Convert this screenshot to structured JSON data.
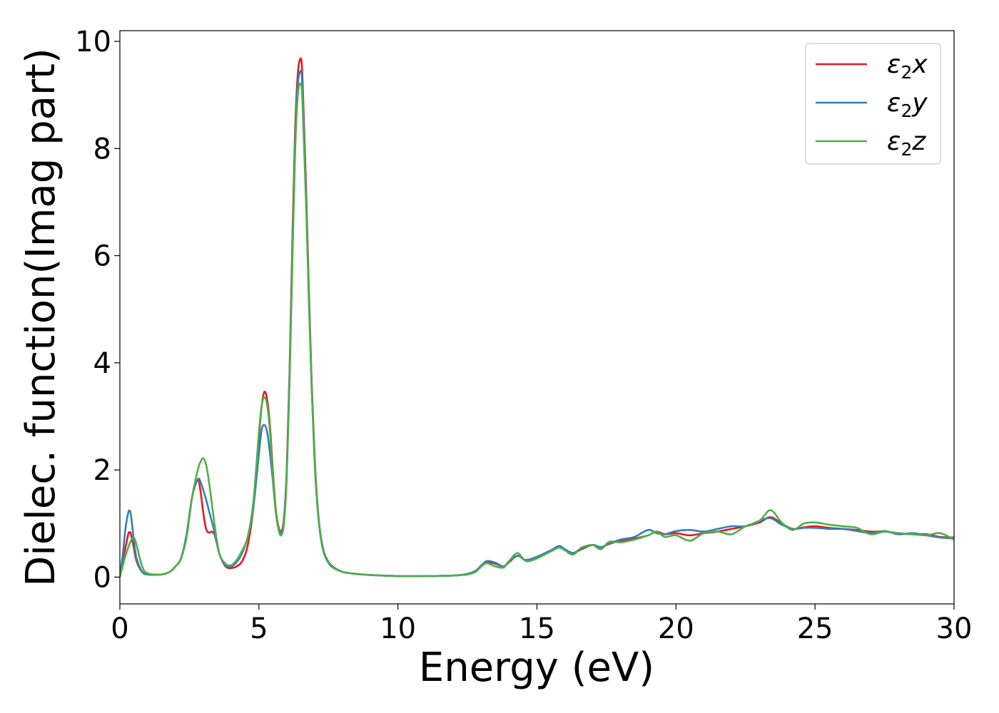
{
  "chart_data": {
    "type": "line",
    "title": "",
    "xlabel": "Energy (eV)",
    "ylabel": "Dielec. function(Imag part)",
    "xlim": [
      0,
      30
    ],
    "ylim": [
      -0.5,
      10.2
    ],
    "xticks": [
      0,
      5,
      10,
      15,
      20,
      25,
      30
    ],
    "yticks": [
      0,
      2,
      4,
      6,
      8,
      10
    ],
    "grid": false,
    "legend_position": "top-right",
    "series": [
      {
        "name": "ε₂x",
        "legend_base": "ε",
        "legend_sub": "2",
        "legend_var": "x",
        "color": "#e41a1c",
        "x": [
          0,
          0.1,
          0.2,
          0.3,
          0.35,
          0.4,
          0.5,
          0.6,
          0.8,
          1.0,
          1.5,
          1.8,
          2.0,
          2.2,
          2.4,
          2.6,
          2.8,
          2.9,
          3.0,
          3.1,
          3.2,
          3.3,
          3.4,
          3.5,
          3.6,
          3.8,
          4.0,
          4.2,
          4.4,
          4.6,
          4.8,
          5.0,
          5.1,
          5.2,
          5.3,
          5.4,
          5.5,
          5.6,
          5.7,
          5.8,
          5.9,
          6.0,
          6.1,
          6.2,
          6.3,
          6.4,
          6.5,
          6.55,
          6.6,
          6.7,
          6.8,
          6.9,
          7.0,
          7.1,
          7.2,
          7.3,
          7.4,
          7.6,
          8.0,
          8.5,
          9.0,
          10.0,
          11.0,
          12.0,
          12.5,
          12.8,
          13.0,
          13.2,
          13.5,
          13.8,
          14.0,
          14.3,
          14.6,
          15.0,
          15.5,
          15.8,
          16.0,
          16.3,
          16.6,
          17.0,
          17.3,
          17.6,
          18.0,
          18.5,
          19.0,
          19.3,
          19.6,
          20.0,
          20.5,
          21.0,
          21.5,
          22.0,
          22.5,
          23.0,
          23.4,
          23.8,
          24.2,
          24.6,
          25.0,
          25.5,
          26.0,
          26.5,
          27.0,
          27.5,
          28.0,
          28.5,
          29.0,
          29.5,
          30.0
        ],
        "y": [
          0,
          0.3,
          0.55,
          0.8,
          0.84,
          0.8,
          0.55,
          0.3,
          0.1,
          0.05,
          0.05,
          0.1,
          0.2,
          0.35,
          0.8,
          1.5,
          1.82,
          1.6,
          1.2,
          0.9,
          0.83,
          0.85,
          0.8,
          0.6,
          0.4,
          0.2,
          0.17,
          0.2,
          0.3,
          0.6,
          1.3,
          2.6,
          3.2,
          3.46,
          3.3,
          2.8,
          2.0,
          1.3,
          0.95,
          0.85,
          1.1,
          2.0,
          3.8,
          6.2,
          8.3,
          9.4,
          9.68,
          9.5,
          8.8,
          7.2,
          5.3,
          3.6,
          2.3,
          1.4,
          0.85,
          0.55,
          0.38,
          0.22,
          0.1,
          0.06,
          0.04,
          0.02,
          0.02,
          0.03,
          0.06,
          0.12,
          0.2,
          0.28,
          0.25,
          0.2,
          0.28,
          0.4,
          0.32,
          0.38,
          0.5,
          0.58,
          0.52,
          0.45,
          0.52,
          0.6,
          0.56,
          0.62,
          0.68,
          0.72,
          0.78,
          0.85,
          0.8,
          0.82,
          0.78,
          0.82,
          0.85,
          0.9,
          0.95,
          1.02,
          1.12,
          1.0,
          0.9,
          0.93,
          0.95,
          0.92,
          0.9,
          0.88,
          0.85,
          0.85,
          0.82,
          0.8,
          0.8,
          0.75,
          0.74
        ]
      },
      {
        "name": "ε₂y",
        "legend_base": "ε",
        "legend_sub": "2",
        "legend_var": "y",
        "color": "#377eb8",
        "x": [
          0,
          0.1,
          0.2,
          0.3,
          0.35,
          0.4,
          0.5,
          0.6,
          0.8,
          1.0,
          1.5,
          1.8,
          2.0,
          2.2,
          2.4,
          2.6,
          2.8,
          2.9,
          3.0,
          3.1,
          3.2,
          3.3,
          3.4,
          3.5,
          3.6,
          3.8,
          4.0,
          4.2,
          4.4,
          4.6,
          4.8,
          5.0,
          5.1,
          5.2,
          5.3,
          5.4,
          5.5,
          5.6,
          5.7,
          5.8,
          5.9,
          6.0,
          6.1,
          6.2,
          6.3,
          6.4,
          6.5,
          6.55,
          6.6,
          6.7,
          6.8,
          6.9,
          7.0,
          7.1,
          7.2,
          7.3,
          7.4,
          7.6,
          8.0,
          8.5,
          9.0,
          10.0,
          11.0,
          12.0,
          12.5,
          12.8,
          13.0,
          13.2,
          13.5,
          13.8,
          14.0,
          14.3,
          14.6,
          15.0,
          15.5,
          15.8,
          16.0,
          16.3,
          16.6,
          17.0,
          17.3,
          17.6,
          18.0,
          18.5,
          19.0,
          19.3,
          19.6,
          20.0,
          20.5,
          21.0,
          21.5,
          22.0,
          22.5,
          23.0,
          23.4,
          23.8,
          24.2,
          24.6,
          25.0,
          25.5,
          26.0,
          26.5,
          27.0,
          27.5,
          28.0,
          28.5,
          29.0,
          29.5,
          30.0
        ],
        "y": [
          0,
          0.4,
          0.9,
          1.2,
          1.24,
          1.15,
          0.7,
          0.35,
          0.1,
          0.05,
          0.05,
          0.1,
          0.2,
          0.35,
          0.8,
          1.5,
          1.82,
          1.78,
          1.62,
          1.45,
          1.25,
          1.05,
          0.85,
          0.6,
          0.4,
          0.22,
          0.2,
          0.28,
          0.45,
          0.75,
          1.3,
          2.3,
          2.75,
          2.84,
          2.7,
          2.3,
          1.8,
          1.25,
          0.92,
          0.82,
          1.05,
          1.9,
          3.7,
          6.0,
          8.1,
          9.2,
          9.45,
          9.3,
          8.6,
          7.0,
          5.2,
          3.5,
          2.2,
          1.35,
          0.85,
          0.55,
          0.38,
          0.22,
          0.1,
          0.06,
          0.04,
          0.02,
          0.02,
          0.03,
          0.06,
          0.12,
          0.22,
          0.3,
          0.27,
          0.2,
          0.3,
          0.4,
          0.32,
          0.38,
          0.5,
          0.58,
          0.52,
          0.45,
          0.54,
          0.6,
          0.56,
          0.63,
          0.7,
          0.75,
          0.88,
          0.82,
          0.8,
          0.86,
          0.88,
          0.85,
          0.9,
          0.95,
          0.95,
          1.05,
          1.1,
          0.98,
          0.9,
          0.92,
          0.92,
          0.9,
          0.9,
          0.86,
          0.82,
          0.86,
          0.8,
          0.82,
          0.78,
          0.74,
          0.72
        ]
      },
      {
        "name": "ε₂z",
        "legend_base": "ε",
        "legend_sub": "2",
        "legend_var": "z",
        "color": "#4daf4a",
        "x": [
          0,
          0.1,
          0.2,
          0.3,
          0.35,
          0.4,
          0.5,
          0.6,
          0.8,
          1.0,
          1.5,
          1.8,
          2.0,
          2.2,
          2.4,
          2.6,
          2.8,
          2.9,
          3.0,
          3.1,
          3.2,
          3.3,
          3.4,
          3.5,
          3.6,
          3.8,
          4.0,
          4.2,
          4.4,
          4.6,
          4.8,
          5.0,
          5.1,
          5.2,
          5.3,
          5.4,
          5.5,
          5.6,
          5.7,
          5.8,
          5.9,
          6.0,
          6.1,
          6.2,
          6.3,
          6.4,
          6.5,
          6.55,
          6.6,
          6.7,
          6.8,
          6.9,
          7.0,
          7.1,
          7.2,
          7.3,
          7.4,
          7.6,
          8.0,
          8.5,
          9.0,
          10.0,
          11.0,
          12.0,
          12.5,
          12.8,
          13.0,
          13.2,
          13.5,
          13.8,
          14.0,
          14.3,
          14.6,
          15.0,
          15.5,
          15.8,
          16.0,
          16.3,
          16.6,
          17.0,
          17.3,
          17.6,
          18.0,
          18.5,
          19.0,
          19.3,
          19.6,
          20.0,
          20.5,
          21.0,
          21.5,
          22.0,
          22.5,
          23.0,
          23.4,
          23.8,
          24.2,
          24.6,
          25.0,
          25.5,
          26.0,
          26.5,
          27.0,
          27.5,
          28.0,
          28.5,
          29.0,
          29.5,
          30.0
        ],
        "y": [
          0,
          0.2,
          0.4,
          0.55,
          0.62,
          0.68,
          0.74,
          0.6,
          0.2,
          0.07,
          0.05,
          0.1,
          0.2,
          0.35,
          0.75,
          1.5,
          2.0,
          2.15,
          2.22,
          2.1,
          1.8,
          1.4,
          1.0,
          0.65,
          0.4,
          0.25,
          0.22,
          0.32,
          0.5,
          0.75,
          1.4,
          2.7,
          3.2,
          3.36,
          3.2,
          2.7,
          1.9,
          1.25,
          0.9,
          0.78,
          1.0,
          1.85,
          3.6,
          5.8,
          7.9,
          9.0,
          9.22,
          9.05,
          8.4,
          6.9,
          5.1,
          3.5,
          2.2,
          1.35,
          0.82,
          0.52,
          0.36,
          0.2,
          0.1,
          0.06,
          0.04,
          0.02,
          0.02,
          0.03,
          0.05,
          0.1,
          0.2,
          0.26,
          0.2,
          0.18,
          0.3,
          0.45,
          0.3,
          0.35,
          0.48,
          0.55,
          0.5,
          0.42,
          0.55,
          0.6,
          0.52,
          0.66,
          0.65,
          0.7,
          0.78,
          0.85,
          0.75,
          0.78,
          0.68,
          0.82,
          0.85,
          0.8,
          0.95,
          1.05,
          1.25,
          1.02,
          0.88,
          1.0,
          1.02,
          0.98,
          0.95,
          0.92,
          0.8,
          0.85,
          0.82,
          0.8,
          0.78,
          0.82,
          0.7
        ]
      }
    ]
  }
}
